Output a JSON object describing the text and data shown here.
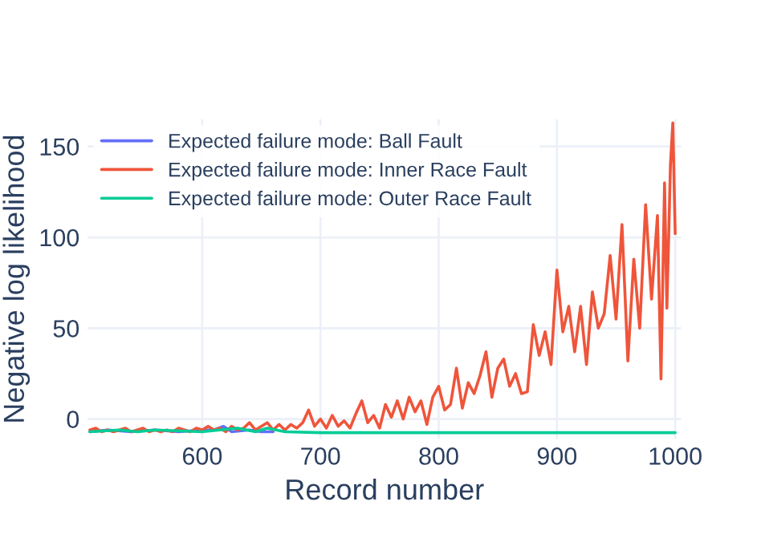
{
  "chart_data": {
    "type": "line",
    "xlabel": "Record number",
    "ylabel": "Negative log likelihood",
    "xlim": [
      503,
      1005
    ],
    "ylim": [
      -11,
      165
    ],
    "xticks": [
      600,
      700,
      800,
      900,
      1000
    ],
    "yticks": [
      0,
      50,
      100,
      150
    ],
    "grid": true,
    "legend": "top left",
    "series": [
      {
        "name": "Expected failure mode: Ball Fault",
        "color": "#636efa",
        "x": [
          505,
          520,
          540,
          560,
          580,
          600,
          610,
          618,
          625,
          640,
          650,
          660
        ],
        "values": [
          -7,
          -6,
          -7,
          -6,
          -7,
          -6,
          -6,
          -4,
          -7,
          -6,
          -7,
          -7
        ]
      },
      {
        "name": "Expected failure mode: Inner Race Fault",
        "color": "#ef553b",
        "x": [
          505,
          510,
          515,
          520,
          525,
          530,
          535,
          540,
          545,
          550,
          555,
          560,
          565,
          570,
          575,
          580,
          585,
          590,
          595,
          600,
          605,
          610,
          615,
          620,
          625,
          630,
          635,
          640,
          645,
          650,
          655,
          660,
          665,
          670,
          675,
          680,
          685,
          690,
          695,
          700,
          705,
          710,
          715,
          720,
          725,
          730,
          735,
          740,
          745,
          750,
          755,
          760,
          765,
          770,
          775,
          780,
          785,
          790,
          795,
          800,
          805,
          810,
          815,
          820,
          825,
          830,
          835,
          840,
          845,
          850,
          855,
          860,
          865,
          870,
          875,
          880,
          885,
          890,
          895,
          900,
          905,
          910,
          915,
          920,
          925,
          930,
          935,
          940,
          945,
          950,
          955,
          960,
          965,
          970,
          975,
          980,
          985,
          988,
          991,
          993,
          996,
          998,
          1000
        ],
        "values": [
          -6,
          -5,
          -7,
          -6,
          -7,
          -6,
          -5,
          -7,
          -6,
          -5,
          -7,
          -6,
          -7,
          -6,
          -7,
          -5,
          -6,
          -7,
          -5,
          -6,
          -4,
          -6,
          -5,
          -7,
          -4,
          -6,
          -5,
          -2,
          -6,
          -4,
          -2,
          -6,
          -3,
          -6,
          -3,
          -5,
          -2,
          5,
          -4,
          0,
          -5,
          2,
          -4,
          -1,
          -5,
          3,
          10,
          -2,
          2,
          -5,
          8,
          1,
          10,
          0,
          12,
          4,
          10,
          -3,
          12,
          18,
          5,
          8,
          28,
          6,
          20,
          14,
          24,
          37,
          12,
          28,
          33,
          18,
          25,
          14,
          15,
          52,
          35,
          48,
          30,
          82,
          48,
          62,
          37,
          62,
          30,
          70,
          50,
          58,
          90,
          55,
          107,
          32,
          88,
          50,
          118,
          66,
          112,
          22,
          130,
          61,
          140,
          163,
          102
        ]
      },
      {
        "name": "Expected failure mode: Outer Race Fault",
        "color": "#00cc96",
        "x": [
          505,
          530,
          545,
          560,
          600,
          630,
          645,
          655,
          670,
          700,
          800,
          900,
          1000
        ],
        "values": [
          -7,
          -6,
          -7,
          -6,
          -7,
          -5,
          -7,
          -5,
          -7,
          -7.5,
          -7.5,
          -7.5,
          -7.5
        ]
      }
    ]
  }
}
